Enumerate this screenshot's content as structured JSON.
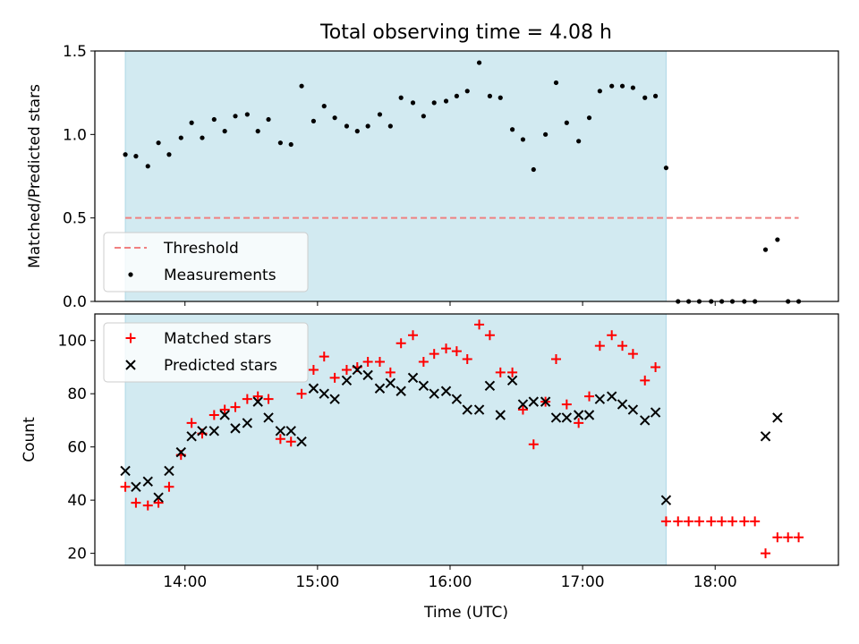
{
  "chart_data": {
    "title": "Total observing time = 4.08 h",
    "xlabel": "Time (UTC)",
    "x_unit": "hours UTC",
    "x_ticks": [
      {
        "value": 14,
        "label": "14:00"
      },
      {
        "value": 15,
        "label": "15:00"
      },
      {
        "value": 16,
        "label": "16:00"
      },
      {
        "value": 17,
        "label": "17:00"
      },
      {
        "value": 18,
        "label": "18:00"
      }
    ],
    "xlim": [
      13.32,
      18.93
    ],
    "observing_window": {
      "start": 13.55,
      "end": 17.63,
      "color": "#add8e6"
    },
    "panels": [
      {
        "type": "scatter",
        "ylabel": "Matched/Predicted stars",
        "ylim": [
          0,
          1.5
        ],
        "y_ticks": [
          {
            "value": 0,
            "label": "0.0"
          },
          {
            "value": 0.5,
            "label": "0.5"
          },
          {
            "value": 1.0,
            "label": "1.0"
          },
          {
            "value": 1.5,
            "label": "1.5"
          }
        ],
        "threshold": {
          "name": "Threshold",
          "value": 0.5,
          "x_range": [
            13.55,
            18.63
          ],
          "color": "#f08080"
        },
        "series": [
          {
            "name": "Measurements",
            "marker": "dot",
            "color": "#000000",
            "points": [
              [
                13.55,
                0.88
              ],
              [
                13.63,
                0.87
              ],
              [
                13.72,
                0.81
              ],
              [
                13.8,
                0.95
              ],
              [
                13.88,
                0.88
              ],
              [
                13.97,
                0.98
              ],
              [
                14.05,
                1.07
              ],
              [
                14.13,
                0.98
              ],
              [
                14.22,
                1.09
              ],
              [
                14.3,
                1.02
              ],
              [
                14.38,
                1.11
              ],
              [
                14.47,
                1.12
              ],
              [
                14.55,
                1.02
              ],
              [
                14.63,
                1.09
              ],
              [
                14.72,
                0.95
              ],
              [
                14.8,
                0.94
              ],
              [
                14.88,
                1.29
              ],
              [
                14.97,
                1.08
              ],
              [
                15.05,
                1.17
              ],
              [
                15.13,
                1.1
              ],
              [
                15.22,
                1.05
              ],
              [
                15.3,
                1.02
              ],
              [
                15.38,
                1.05
              ],
              [
                15.47,
                1.12
              ],
              [
                15.55,
                1.05
              ],
              [
                15.63,
                1.22
              ],
              [
                15.72,
                1.19
              ],
              [
                15.8,
                1.11
              ],
              [
                15.88,
                1.19
              ],
              [
                15.97,
                1.2
              ],
              [
                16.05,
                1.23
              ],
              [
                16.13,
                1.26
              ],
              [
                16.22,
                1.43
              ],
              [
                16.3,
                1.23
              ],
              [
                16.38,
                1.22
              ],
              [
                16.47,
                1.03
              ],
              [
                16.55,
                0.97
              ],
              [
                16.63,
                0.79
              ],
              [
                16.72,
                1.0
              ],
              [
                16.8,
                1.31
              ],
              [
                16.88,
                1.07
              ],
              [
                16.97,
                0.96
              ],
              [
                17.05,
                1.1
              ],
              [
                17.13,
                1.26
              ],
              [
                17.22,
                1.29
              ],
              [
                17.3,
                1.29
              ],
              [
                17.38,
                1.28
              ],
              [
                17.47,
                1.22
              ],
              [
                17.55,
                1.23
              ],
              [
                17.63,
                0.8
              ],
              [
                17.72,
                0.0
              ],
              [
                17.8,
                0.0
              ],
              [
                17.88,
                0.0
              ],
              [
                17.97,
                0.0
              ],
              [
                18.05,
                0.0
              ],
              [
                18.13,
                0.0
              ],
              [
                18.22,
                0.0
              ],
              [
                18.3,
                0.0
              ],
              [
                18.38,
                0.31
              ],
              [
                18.47,
                0.37
              ],
              [
                18.55,
                0.0
              ],
              [
                18.63,
                0.0
              ]
            ]
          }
        ],
        "legend": {
          "placement": "lower-left",
          "entries": [
            "Threshold",
            "Measurements"
          ]
        }
      },
      {
        "type": "scatter",
        "ylabel": "Count",
        "ylim": [
          15.5,
          110
        ],
        "y_ticks": [
          {
            "value": 20,
            "label": "20"
          },
          {
            "value": 40,
            "label": "40"
          },
          {
            "value": 60,
            "label": "60"
          },
          {
            "value": 80,
            "label": "80"
          },
          {
            "value": 100,
            "label": "100"
          }
        ],
        "series": [
          {
            "name": "Matched stars",
            "marker": "plus",
            "color": "#ff0000",
            "points": [
              [
                13.55,
                45
              ],
              [
                13.63,
                39
              ],
              [
                13.72,
                38
              ],
              [
                13.8,
                39
              ],
              [
                13.88,
                45
              ],
              [
                13.97,
                57
              ],
              [
                14.05,
                69
              ],
              [
                14.13,
                65
              ],
              [
                14.22,
                72
              ],
              [
                14.3,
                74
              ],
              [
                14.38,
                75
              ],
              [
                14.47,
                78
              ],
              [
                14.55,
                79
              ],
              [
                14.63,
                78
              ],
              [
                14.72,
                63
              ],
              [
                14.8,
                62
              ],
              [
                14.88,
                80
              ],
              [
                14.97,
                89
              ],
              [
                15.05,
                94
              ],
              [
                15.13,
                86
              ],
              [
                15.22,
                89
              ],
              [
                15.3,
                90
              ],
              [
                15.38,
                92
              ],
              [
                15.47,
                92
              ],
              [
                15.55,
                88
              ],
              [
                15.63,
                99
              ],
              [
                15.72,
                102
              ],
              [
                15.8,
                92
              ],
              [
                15.88,
                95
              ],
              [
                15.97,
                97
              ],
              [
                16.05,
                96
              ],
              [
                16.13,
                93
              ],
              [
                16.22,
                106
              ],
              [
                16.3,
                102
              ],
              [
                16.38,
                88
              ],
              [
                16.47,
                88
              ],
              [
                16.55,
                74
              ],
              [
                16.63,
                61
              ],
              [
                16.72,
                77
              ],
              [
                16.8,
                93
              ],
              [
                16.88,
                76
              ],
              [
                16.97,
                69
              ],
              [
                17.05,
                79
              ],
              [
                17.13,
                98
              ],
              [
                17.22,
                102
              ],
              [
                17.3,
                98
              ],
              [
                17.38,
                95
              ],
              [
                17.47,
                85
              ],
              [
                17.55,
                90
              ],
              [
                17.63,
                32
              ],
              [
                17.72,
                32
              ],
              [
                17.8,
                32
              ],
              [
                17.88,
                32
              ],
              [
                17.97,
                32
              ],
              [
                18.05,
                32
              ],
              [
                18.13,
                32
              ],
              [
                18.22,
                32
              ],
              [
                18.3,
                32
              ],
              [
                18.38,
                20
              ],
              [
                18.47,
                26
              ],
              [
                18.55,
                26
              ],
              [
                18.63,
                26
              ]
            ]
          },
          {
            "name": "Predicted stars",
            "marker": "x",
            "color": "#000000",
            "points": [
              [
                13.55,
                51
              ],
              [
                13.63,
                45
              ],
              [
                13.72,
                47
              ],
              [
                13.8,
                41
              ],
              [
                13.88,
                51
              ],
              [
                13.97,
                58
              ],
              [
                14.05,
                64
              ],
              [
                14.13,
                66
              ],
              [
                14.22,
                66
              ],
              [
                14.3,
                72
              ],
              [
                14.38,
                67
              ],
              [
                14.47,
                69
              ],
              [
                14.55,
                77
              ],
              [
                14.63,
                71
              ],
              [
                14.72,
                66
              ],
              [
                14.8,
                66
              ],
              [
                14.88,
                62
              ],
              [
                14.97,
                82
              ],
              [
                15.05,
                80
              ],
              [
                15.13,
                78
              ],
              [
                15.22,
                85
              ],
              [
                15.3,
                89
              ],
              [
                15.38,
                87
              ],
              [
                15.47,
                82
              ],
              [
                15.55,
                84
              ],
              [
                15.63,
                81
              ],
              [
                15.72,
                86
              ],
              [
                15.8,
                83
              ],
              [
                15.88,
                80
              ],
              [
                15.97,
                81
              ],
              [
                16.05,
                78
              ],
              [
                16.13,
                74
              ],
              [
                16.22,
                74
              ],
              [
                16.3,
                83
              ],
              [
                16.38,
                72
              ],
              [
                16.47,
                85
              ],
              [
                16.55,
                76
              ],
              [
                16.63,
                77
              ],
              [
                16.72,
                77
              ],
              [
                16.8,
                71
              ],
              [
                16.88,
                71
              ],
              [
                16.97,
                72
              ],
              [
                17.05,
                72
              ],
              [
                17.13,
                78
              ],
              [
                17.22,
                79
              ],
              [
                17.3,
                76
              ],
              [
                17.38,
                74
              ],
              [
                17.47,
                70
              ],
              [
                17.55,
                73
              ],
              [
                17.63,
                40
              ],
              [
                18.38,
                64
              ],
              [
                18.47,
                71
              ]
            ]
          }
        ],
        "legend": {
          "placement": "upper-left",
          "entries": [
            "Matched stars",
            "Predicted stars"
          ]
        }
      }
    ]
  }
}
